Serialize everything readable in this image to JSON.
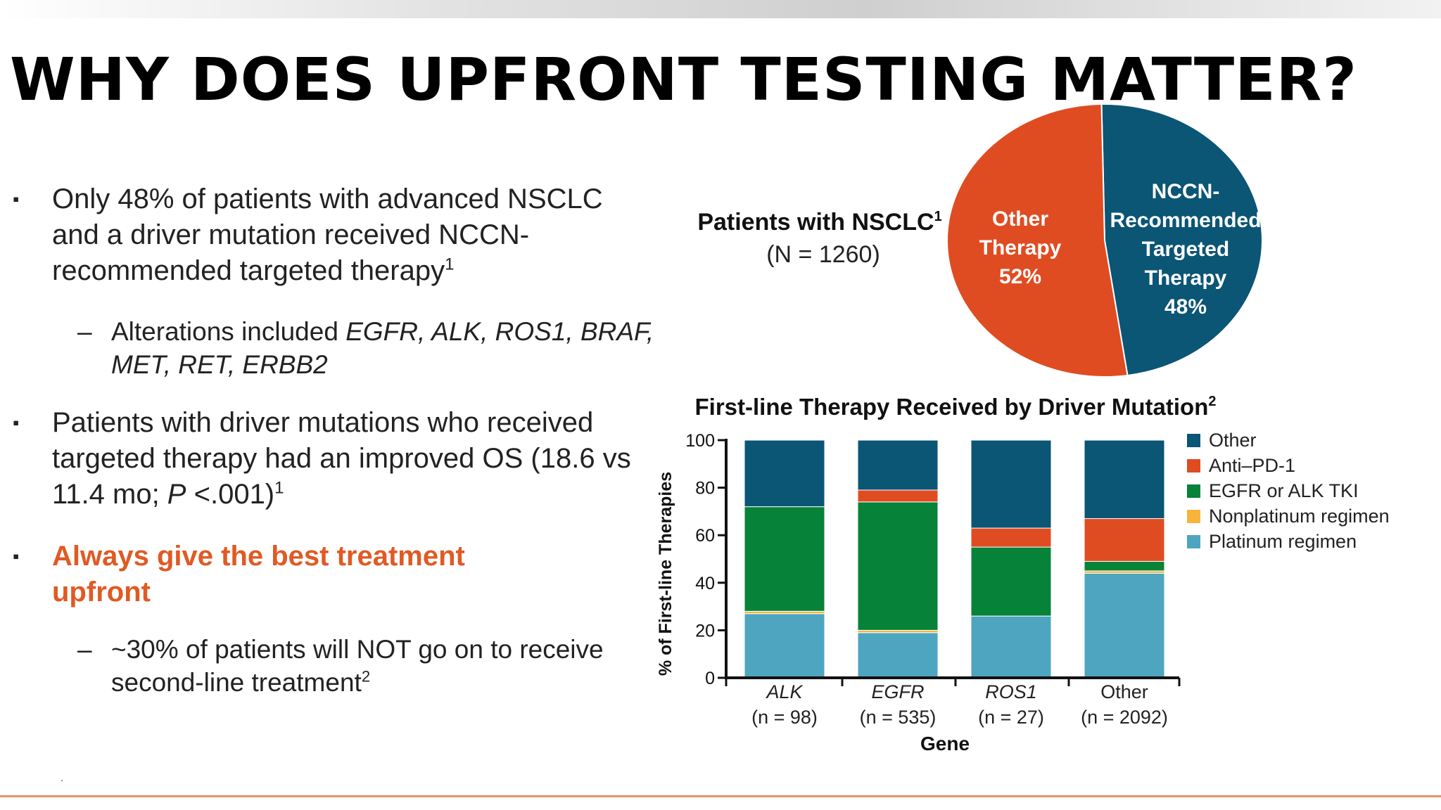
{
  "slide": {
    "title": "WHY DOES UPFRONT TESTING MATTER?"
  },
  "bullets": {
    "b1": {
      "text": "Only 48% of patients with advanced NSCLC and a driver mutation received NCCN-recommended targeted therapy",
      "sup": "1"
    },
    "b1_sub": {
      "prefix": "Alterations included ",
      "italic": "EGFR, ALK, ROS1, BRAF, MET, RET, ERBB2"
    },
    "b2": {
      "text_a": "Patients with driver mutations who received targeted therapy had an improved OS (18.6 vs 11.4 mo; ",
      "p": "P",
      "text_b": " <.001)",
      "sup": "1"
    },
    "b3": {
      "text": "Always give the best treatment upfront"
    },
    "b3_sub": {
      "text": "~30% of patients will NOT go on to receive second-line treatment",
      "sup": "2"
    },
    "marker": "▪",
    "dash": "–",
    "footer_dot": "."
  },
  "chart_data": [
    {
      "type": "pie",
      "title": "Patients with NSCLC",
      "title_sup": "1",
      "subtitle": "(N = 1260)",
      "slices": [
        {
          "label_lines": [
            "NCCN-",
            "Recommended",
            "Targeted",
            "Therapy",
            "48%"
          ],
          "value": 48,
          "color": "#0b5575"
        },
        {
          "label_lines": [
            "Other",
            "Therapy",
            "52%"
          ],
          "value": 52,
          "color": "#e04c22"
        }
      ]
    },
    {
      "type": "bar",
      "stacked": true,
      "title": "First-line Therapy Received by Driver Mutation",
      "title_sup": "2",
      "xlabel": "Gene",
      "ylabel": "% of First-line Therapies",
      "ylim": [
        0,
        100
      ],
      "yticks": [
        0,
        20,
        40,
        60,
        80,
        100
      ],
      "categories": [
        {
          "name": "ALK",
          "italic": true,
          "n": "(n = 98)"
        },
        {
          "name": "EGFR",
          "italic": true,
          "n": "(n = 535)"
        },
        {
          "name": "ROS1",
          "italic": true,
          "n": "(n = 27)"
        },
        {
          "name": "Other",
          "italic": false,
          "n": "(n = 2092)"
        }
      ],
      "legend_position": "right",
      "series": [
        {
          "name": "Platinum regimen",
          "color": "#4ea5c0",
          "values": [
            27,
            19,
            26,
            44
          ]
        },
        {
          "name": "Nonplatinum regimen",
          "color": "#f7b43d",
          "values": [
            1,
            1,
            0,
            1
          ]
        },
        {
          "name": "EGFR or ALK TKI",
          "color": "#068239",
          "values": [
            44,
            54,
            29,
            4
          ]
        },
        {
          "name": "Anti–PD-1",
          "color": "#e04c22",
          "values": [
            0,
            5,
            8,
            18
          ]
        },
        {
          "name": "Other",
          "color": "#0b5575",
          "values": [
            28,
            21,
            37,
            33
          ]
        }
      ]
    }
  ]
}
